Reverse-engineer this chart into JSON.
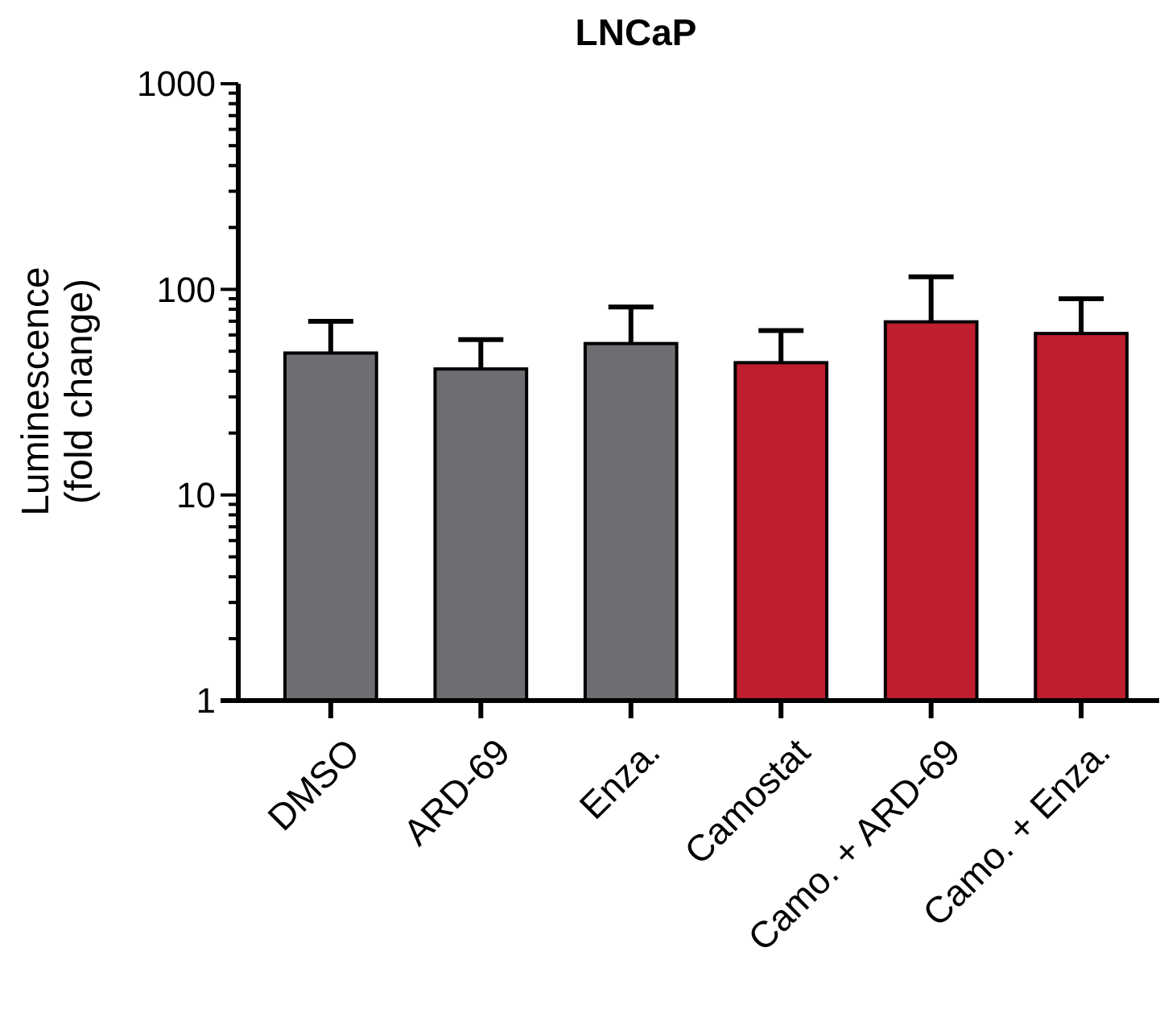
{
  "chart_data": {
    "type": "bar",
    "title": "LNCaP",
    "ylabel": "Luminescence\n(fold change)",
    "categories": [
      "DMSO",
      "ARD-69",
      "Enza.",
      "Camostat",
      "Camo. + ARD-69",
      "Camo. + Enza."
    ],
    "values": [
      49,
      41,
      54.5,
      44,
      69.5,
      61
    ],
    "errors": [
      21,
      16,
      27.5,
      19,
      45.5,
      29
    ],
    "colors": [
      "#6d6e71",
      "#6d6e71",
      "#6d6e71",
      "#be1e2d",
      "#be1e2d",
      "#be1e2d"
    ],
    "log": true,
    "ylim": [
      1,
      1000
    ],
    "yticks": [
      1,
      {
        "value": 2,
        "label": null
      },
      {
        "value": 3,
        "label": null
      },
      {
        "value": 4,
        "label": null
      },
      {
        "value": 5,
        "label": null
      },
      {
        "value": 6,
        "label": null
      },
      {
        "value": 7,
        "label": null
      },
      {
        "value": 8,
        "label": null
      },
      {
        "value": 9,
        "label": null
      },
      10,
      {
        "value": 20,
        "label": null
      },
      {
        "value": 30,
        "label": null
      },
      {
        "value": 40,
        "label": null
      },
      {
        "value": 50,
        "label": null
      },
      {
        "value": 60,
        "label": null
      },
      {
        "value": 70,
        "label": null
      },
      {
        "value": 80,
        "label": null
      },
      {
        "value": 90,
        "label": null
      },
      100,
      {
        "value": 200,
        "label": null
      },
      {
        "value": 300,
        "label": null
      },
      {
        "value": 400,
        "label": null
      },
      {
        "value": 500,
        "label": null
      },
      {
        "value": 600,
        "label": null
      },
      {
        "value": 700,
        "label": null
      },
      {
        "value": 800,
        "label": null
      },
      {
        "value": 900,
        "label": null
      },
      1000
    ],
    "grid": false
  }
}
